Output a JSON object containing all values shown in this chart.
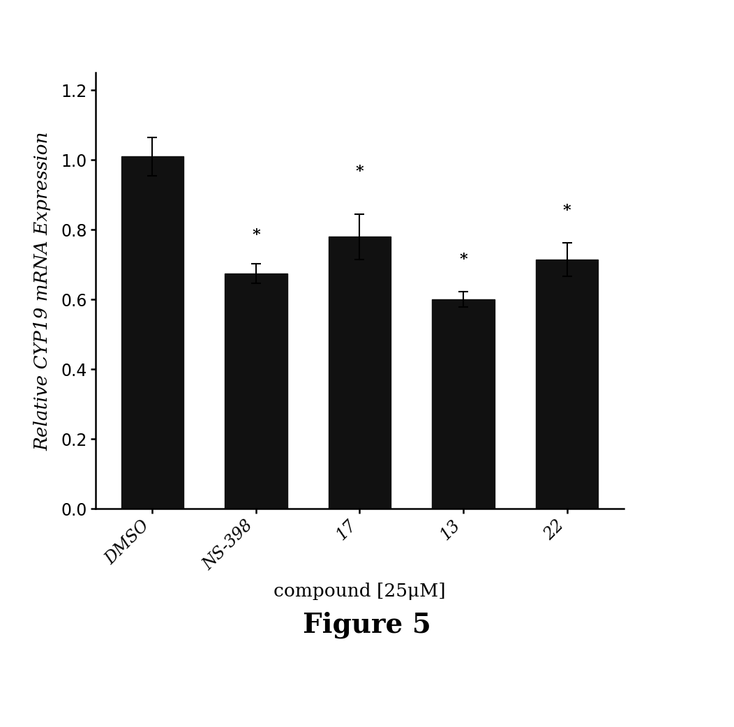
{
  "categories": [
    "DMSO",
    "NS-398",
    "17",
    "13",
    "22"
  ],
  "values": [
    1.01,
    0.675,
    0.78,
    0.6,
    0.715
  ],
  "errors": [
    0.055,
    0.028,
    0.065,
    0.022,
    0.048
  ],
  "bar_color": "#111111",
  "bar_width": 0.6,
  "ylim": [
    0.0,
    1.25
  ],
  "yticks": [
    0.0,
    0.2,
    0.4,
    0.6,
    0.8,
    1.0,
    1.2
  ],
  "ylabel": "Relative CYP19 mRNA Expression",
  "xlabel": "compound [25μM]",
  "figure_label": "Figure 5",
  "significance_markers": [
    "",
    "*",
    "*",
    "*",
    "*"
  ],
  "sig_offsets": [
    0.07,
    0.06,
    0.1,
    0.07,
    0.07
  ],
  "background_color": "#ffffff",
  "tick_label_fontsize": 17,
  "axis_label_fontsize": 19,
  "figure_label_fontsize": 28,
  "sig_fontsize": 16
}
